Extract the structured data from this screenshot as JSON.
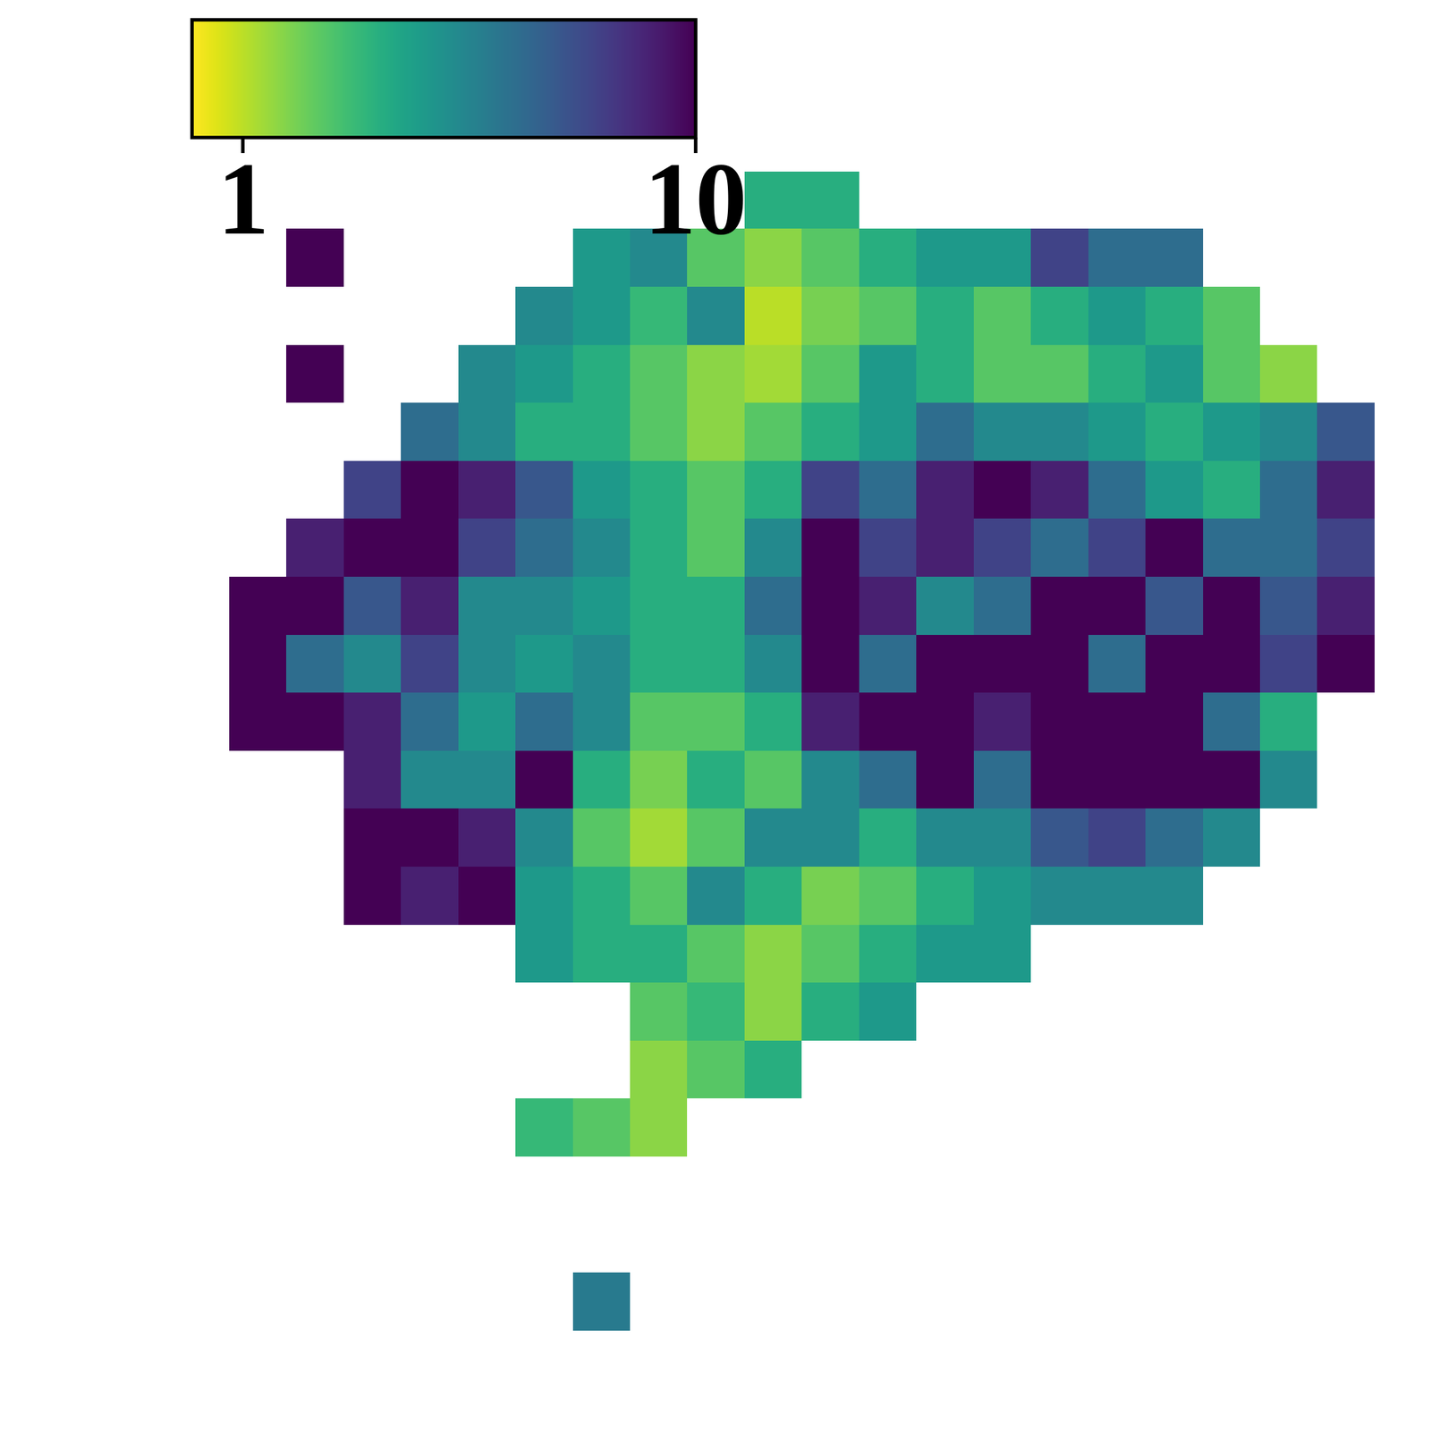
{
  "chart_data": {
    "type": "heatmap",
    "log": true,
    "tick_labels": false,
    "color": "viridis_r",
    "colorbar_range": [
      0.77,
      10
    ],
    "colorbar_ticks": [
      1,
      10
    ],
    "cells": [
      [
        null,
        null,
        null,
        null,
        null,
        null,
        null,
        null,
        null,
        2,
        2,
        null,
        null,
        null,
        null,
        null,
        null,
        null,
        null,
        null
      ],
      [
        null,
        10,
        null,
        null,
        null,
        null,
        2.5,
        3,
        1.5,
        1.2,
        1.5,
        2,
        2.5,
        2.5,
        6,
        4,
        4,
        null,
        null,
        null
      ],
      [
        null,
        null,
        null,
        null,
        null,
        3,
        2.5,
        1.8,
        3,
        1.0,
        1.3,
        1.5,
        2,
        1.5,
        2,
        2.5,
        2,
        1.5,
        null,
        null
      ],
      [
        null,
        10,
        null,
        null,
        3,
        2.5,
        2,
        1.5,
        1.2,
        1.1,
        1.5,
        2.5,
        2,
        1.5,
        1.5,
        2,
        2.5,
        1.5,
        1.2,
        null
      ],
      [
        null,
        null,
        null,
        4,
        3,
        2,
        2,
        1.5,
        1.2,
        1.5,
        2,
        2.5,
        4,
        3,
        3,
        2.5,
        2,
        2.5,
        3,
        5
      ],
      [
        null,
        null,
        6,
        10,
        8,
        5,
        2.5,
        2,
        1.5,
        2,
        6,
        4,
        8,
        10,
        8,
        4,
        2.5,
        2,
        4,
        8
      ],
      [
        null,
        8,
        10,
        10,
        6,
        4,
        3,
        2,
        1.5,
        3,
        10,
        6,
        8,
        6,
        4,
        6,
        10,
        4,
        4,
        6
      ],
      [
        10,
        10,
        5,
        8,
        3,
        3,
        2.5,
        2,
        2,
        4,
        10,
        8,
        3,
        4,
        10,
        10,
        5,
        10,
        5,
        8
      ],
      [
        10,
        4,
        3,
        6,
        3,
        2.5,
        3,
        2,
        2,
        3,
        10,
        4,
        10,
        10,
        10,
        4,
        10,
        10,
        6,
        10
      ],
      [
        10,
        10,
        8,
        4,
        2.5,
        4,
        3,
        1.5,
        1.5,
        2,
        8,
        10,
        10,
        8,
        10,
        10,
        10,
        4,
        2,
        null
      ],
      [
        null,
        null,
        8,
        3,
        3,
        10,
        2,
        1.3,
        2,
        1.5,
        3,
        4,
        10,
        4,
        10,
        10,
        10,
        10,
        3,
        null
      ],
      [
        null,
        null,
        10,
        10,
        8,
        3,
        1.5,
        1.1,
        1.5,
        3,
        3,
        2,
        3,
        3,
        5,
        6,
        4,
        3,
        null,
        null
      ],
      [
        null,
        null,
        10,
        8,
        10,
        2.5,
        2,
        1.5,
        3,
        2,
        1.3,
        1.5,
        2,
        2.5,
        3,
        3,
        3,
        null,
        null,
        null
      ],
      [
        null,
        null,
        null,
        null,
        null,
        2.5,
        2,
        2,
        1.5,
        1.2,
        1.5,
        2,
        2.5,
        2.5,
        null,
        null,
        null,
        null,
        null,
        null
      ],
      [
        null,
        null,
        null,
        null,
        null,
        null,
        null,
        1.5,
        1.8,
        1.2,
        2,
        2.5,
        null,
        null,
        null,
        null,
        null,
        null,
        null,
        null
      ],
      [
        null,
        null,
        null,
        null,
        null,
        null,
        null,
        1.2,
        1.5,
        2,
        null,
        null,
        null,
        null,
        null,
        null,
        null,
        null,
        null,
        null
      ],
      [
        null,
        null,
        null,
        null,
        null,
        1.8,
        1.5,
        1.2,
        null,
        null,
        null,
        null,
        null,
        null,
        null,
        null,
        null,
        null,
        null,
        null
      ],
      [
        null,
        null,
        null,
        null,
        null,
        null,
        null,
        null,
        null,
        null,
        null,
        null,
        null,
        null,
        null,
        null,
        null,
        null,
        null,
        null
      ],
      [
        null,
        null,
        null,
        null,
        null,
        null,
        null,
        null,
        null,
        null,
        null,
        null,
        null,
        null,
        null,
        null,
        null,
        null,
        null,
        null
      ],
      [
        null,
        null,
        null,
        null,
        null,
        null,
        3.5,
        null,
        null,
        null,
        null,
        null,
        null,
        null,
        null,
        null,
        null,
        null,
        null,
        null
      ]
    ]
  }
}
